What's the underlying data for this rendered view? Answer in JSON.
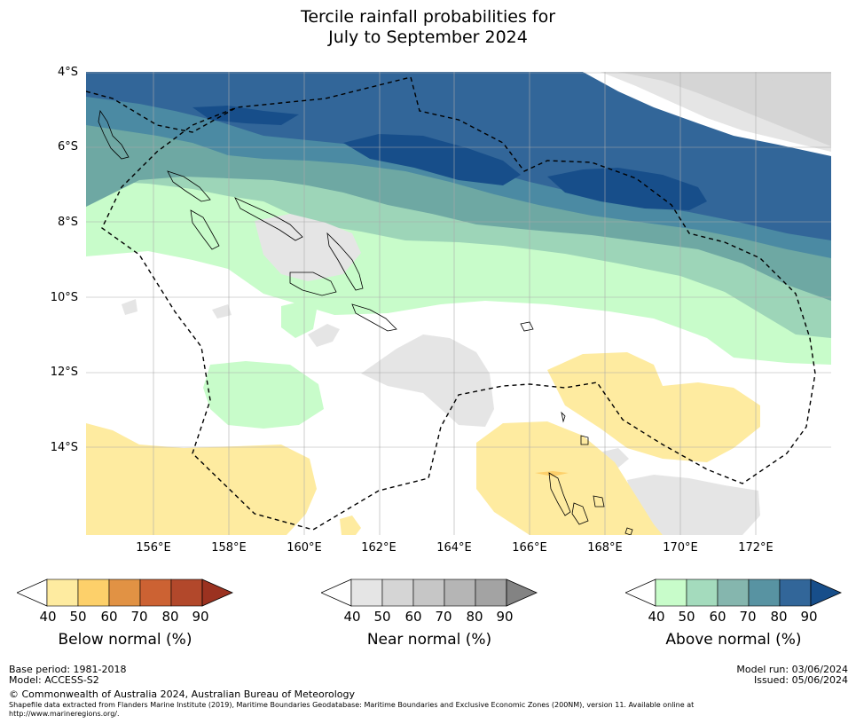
{
  "title": {
    "line1": "Tercile rainfall probabilities for",
    "line2": "July to September 2024"
  },
  "map": {
    "lat_labels": [
      "4°S",
      "6°S",
      "8°S",
      "10°S",
      "12°S",
      "14°S"
    ],
    "lon_labels": [
      "156°E",
      "158°E",
      "160°E",
      "162°E",
      "164°E",
      "166°E",
      "168°E",
      "170°E",
      "172°E"
    ],
    "colors": {
      "above_40": "#c8fcca",
      "above_50": "#9dd5b8",
      "above_60": "#6ea8a3",
      "above_70": "#4b8aa3",
      "above_80": "#326699",
      "above_90": "#174e8a",
      "below_40": "#feeba0",
      "below_50": "#fdd06a",
      "near_40": "#e5e5e5",
      "near_50": "#d5d5d5"
    }
  },
  "colorbars": {
    "below": {
      "title": "Below normal (%)",
      "ticks": [
        "40",
        "50",
        "60",
        "70",
        "80",
        "90"
      ],
      "colors": [
        "#ffffff",
        "#feeba0",
        "#fdd06a",
        "#e19244",
        "#cc6233",
        "#b2482b",
        "#9b3220"
      ]
    },
    "near": {
      "title": "Near normal (%)",
      "ticks": [
        "40",
        "50",
        "60",
        "70",
        "80",
        "90"
      ],
      "colors": [
        "#ffffff",
        "#e5e5e5",
        "#d5d5d5",
        "#c6c6c6",
        "#b5b5b5",
        "#a3a3a3",
        "#838383"
      ]
    },
    "above": {
      "title": "Above normal (%)",
      "ticks": [
        "40",
        "50",
        "60",
        "70",
        "80",
        "90"
      ],
      "colors": [
        "#ffffff",
        "#c8fcca",
        "#a4dbbd",
        "#85b6ae",
        "#5893a2",
        "#326699",
        "#174e8a"
      ]
    }
  },
  "footer": {
    "base_period": "Base period: 1981-2018",
    "model": "Model: ACCESS-S2",
    "model_run": "Model run: 03/06/2024",
    "issued": "Issued: 05/06/2024",
    "copyright": "© Commonwealth of Australia 2024, Australian Bureau of Meteorology",
    "shapefile_line1": "Shapefile data extracted from Flanders Marine Institute (2019), Maritime Boundaries Geodatabase: Maritime Boundaries and Exclusive Economic Zones (200NM), version 11. Available online at",
    "shapefile_line2": "http://www.marineregions.org/."
  }
}
